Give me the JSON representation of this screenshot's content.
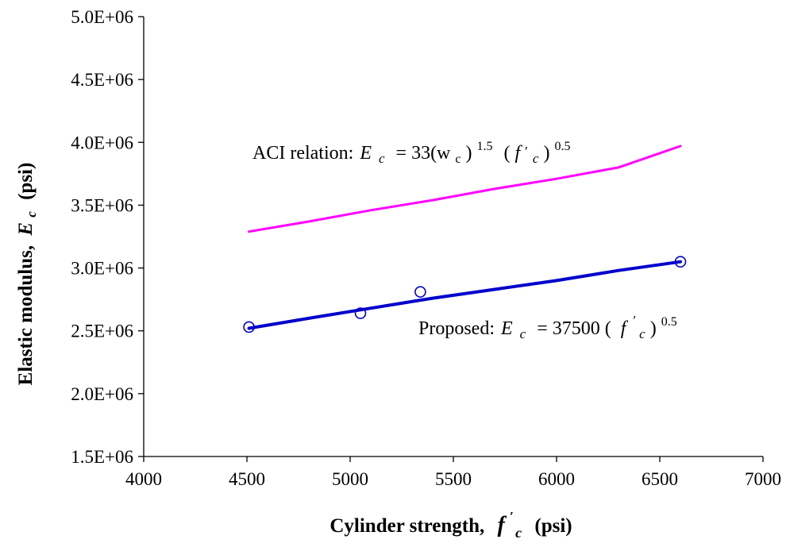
{
  "chart_data": {
    "type": "line",
    "xlabel_prefix": "Cylinder strength,",
    "xlabel_symbol": "f",
    "xlabel_prime": "′",
    "xlabel_sub": "c",
    "xlabel_unit": "(psi)",
    "ylabel_prefix": "Elastic modulus,",
    "ylabel_symbol": "E",
    "ylabel_sub": "c",
    "ylabel_unit": "(psi)",
    "xlim": [
      4000,
      7000
    ],
    "ylim": [
      1500000,
      5000000
    ],
    "x_ticks": [
      4000,
      4500,
      5000,
      5500,
      6000,
      6500,
      7000
    ],
    "x_tick_labels": [
      "4000",
      "4500",
      "5000",
      "5500",
      "6000",
      "6500",
      "7000"
    ],
    "y_ticks": [
      1500000,
      2000000,
      2500000,
      3000000,
      3500000,
      4000000,
      4500000,
      5000000
    ],
    "y_tick_labels": [
      "1.5E+06",
      "2.0E+06",
      "2.5E+06",
      "3.0E+06",
      "3.5E+06",
      "4.0E+06",
      "4.5E+06",
      "5.0E+06"
    ],
    "grid": false,
    "series": [
      {
        "kind": "line",
        "color": "#ff00ff",
        "x": [
          4510,
          4800,
          5100,
          5400,
          5700,
          6000,
          6300,
          6600
        ],
        "y": [
          3290000,
          3370000,
          3460000,
          3540000,
          3630000,
          3710000,
          3800000,
          3970000
        ]
      },
      {
        "kind": "line",
        "color": "#0000cc",
        "x": [
          4510,
          4800,
          5100,
          5400,
          5700,
          6000,
          6300,
          6600
        ],
        "y": [
          2520000,
          2600000,
          2680000,
          2760000,
          2830000,
          2900000,
          2980000,
          3050000
        ]
      },
      {
        "kind": "scatter",
        "color": "#0000cc",
        "x": [
          4510,
          5050,
          5340,
          6600
        ],
        "y": [
          2530000,
          2640000,
          2810000,
          3050000
        ]
      }
    ],
    "annotations": {
      "aci": {
        "prefix": "ACI relation:",
        "E": "E",
        "c": "c",
        "eq": "= 33(w",
        "wsub": "c",
        "close": ")",
        "exp1": "1.5",
        "open2": "(",
        "f": "f",
        "prime": "′",
        "fsub": "c",
        "close2": ")",
        "exp2": "0.5"
      },
      "proposed": {
        "prefix": "Proposed:",
        "E": "E",
        "c": "c",
        "eq": "= 37500 (",
        "f": "f",
        "prime": "′",
        "fsub": "c",
        "close": ")",
        "exp": "0.5"
      }
    }
  }
}
